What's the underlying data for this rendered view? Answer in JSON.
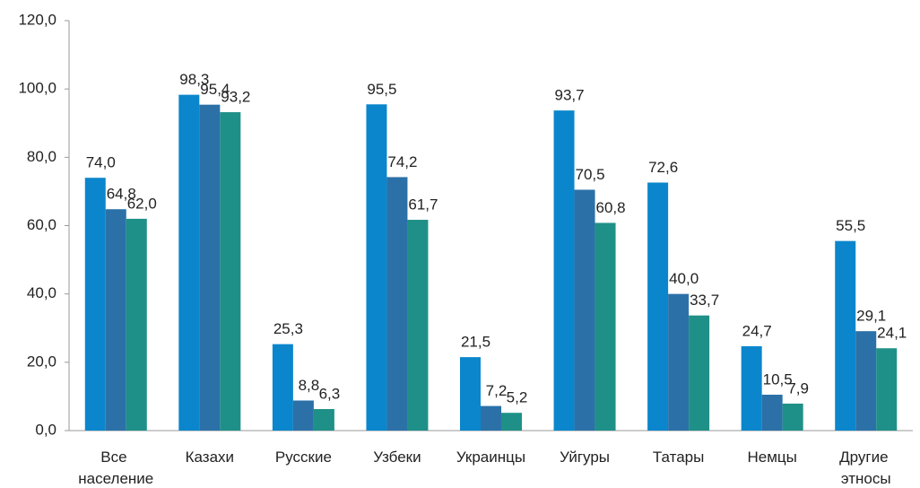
{
  "chart_data": {
    "type": "bar",
    "categories": [
      "Все население",
      "Казахи",
      "Русские",
      "Узбеки",
      "Украинцы",
      "Уйгуры",
      "Татары",
      "Немцы",
      "Другие этносы"
    ],
    "series": [
      {
        "color": "#0b86cc",
        "values": [
          74.0,
          98.3,
          25.3,
          95.5,
          21.5,
          93.7,
          72.6,
          24.7,
          55.5
        ],
        "value_labels": [
          "74,0",
          "98,3",
          "25,3",
          "95,5",
          "21,5",
          "93,7",
          "72,6",
          "24,7",
          "55,5"
        ]
      },
      {
        "color": "#2b71a8",
        "values": [
          64.8,
          95.4,
          8.8,
          74.2,
          7.2,
          70.5,
          40.0,
          10.5,
          29.1
        ],
        "value_labels": [
          "64,8",
          "95,4",
          "8,8",
          "74,2",
          "7,2",
          "70,5",
          "40,0",
          "10,5",
          "29,1"
        ]
      },
      {
        "color": "#1f9088",
        "values": [
          62.0,
          93.2,
          6.3,
          61.7,
          5.2,
          60.8,
          33.7,
          7.9,
          24.1
        ],
        "value_labels": [
          "62,0",
          "93,2",
          "6,3",
          "61,7",
          "5,2",
          "60,8",
          "33,7",
          "7,9",
          "24,1"
        ]
      }
    ],
    "ylim": [
      0,
      120
    ],
    "yticks": [
      {
        "value": 0,
        "label": "0,0"
      },
      {
        "value": 20,
        "label": "20,0"
      },
      {
        "value": 40,
        "label": "40,0"
      },
      {
        "value": 60,
        "label": "60,0"
      },
      {
        "value": 80,
        "label": "80,0"
      },
      {
        "value": 100,
        "label": "100,0"
      },
      {
        "value": 120,
        "label": "120,0"
      }
    ],
    "grid": false
  }
}
